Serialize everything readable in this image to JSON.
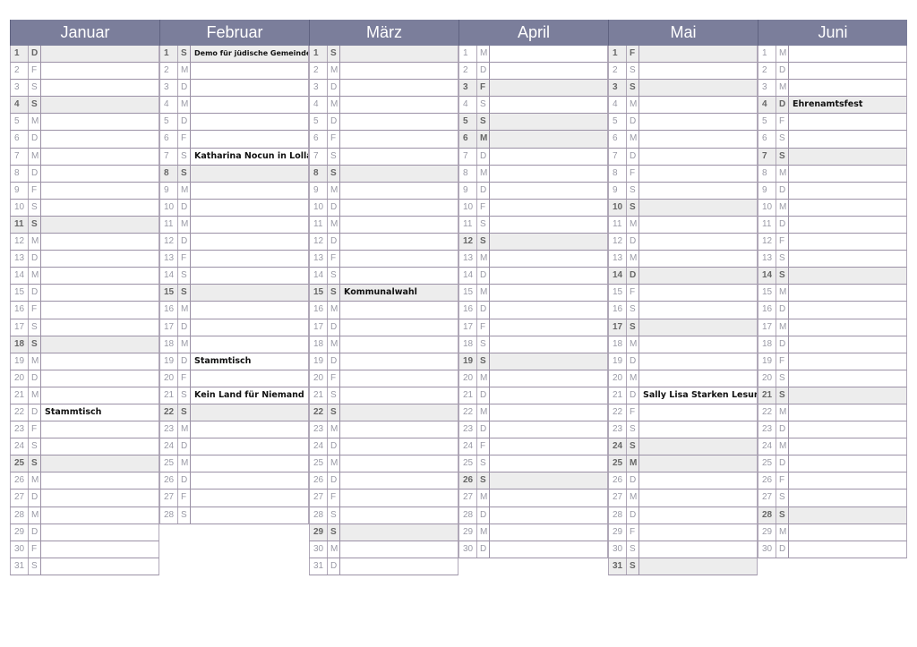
{
  "months": [
    {
      "name": "Januar",
      "weekdays": "DFSSMDMDFSSMDMDFSSMDMDFSSMDMDFS",
      "shaded": [
        1,
        4,
        11,
        18,
        25
      ],
      "events": {
        "22": "Stammtisch"
      }
    },
    {
      "name": "Februar",
      "weekdays": "SMDMDFSSMDMDFSSMDMDFSSMDMDFS",
      "shaded": [
        1,
        8,
        15,
        22
      ],
      "events": {
        "1": "Demo für jüdische Gemeinde",
        "7": "Katharina Nocun in Lollar",
        "19": "Stammtisch",
        "21": "Kein Land für Niemand"
      }
    },
    {
      "name": "März",
      "weekdays": "SMDMDFSSMDMDFSSMDMDFSSMDMDFSSMD",
      "shaded": [
        1,
        8,
        15,
        22,
        29
      ],
      "events": {
        "15": "Kommunalwahl"
      }
    },
    {
      "name": "April",
      "weekdays": "MDFSSMDMDFSSMDMDFSSMDMDFSSMDMD",
      "shaded": [
        3,
        5,
        6,
        12,
        19,
        26
      ],
      "events": {}
    },
    {
      "name": "Mai",
      "weekdays": "FSSMDMDFSSMDMDFSSMDMDFSSMDMDFSS",
      "shaded": [
        1,
        3,
        10,
        14,
        17,
        24,
        25,
        31
      ],
      "events": {
        "21": "Sally Lisa Starken Lesung"
      }
    },
    {
      "name": "Juni",
      "weekdays": "MDMDFSSMDMDFSSMDMDFSSMDMDFSSMD",
      "shaded": [
        4,
        7,
        14,
        21,
        28
      ],
      "events": {
        "4": "Ehrenamtsfest"
      }
    }
  ],
  "colors": {
    "header": "#7b7e9b",
    "shaded": "#ededed",
    "border": "#9b91a6"
  }
}
